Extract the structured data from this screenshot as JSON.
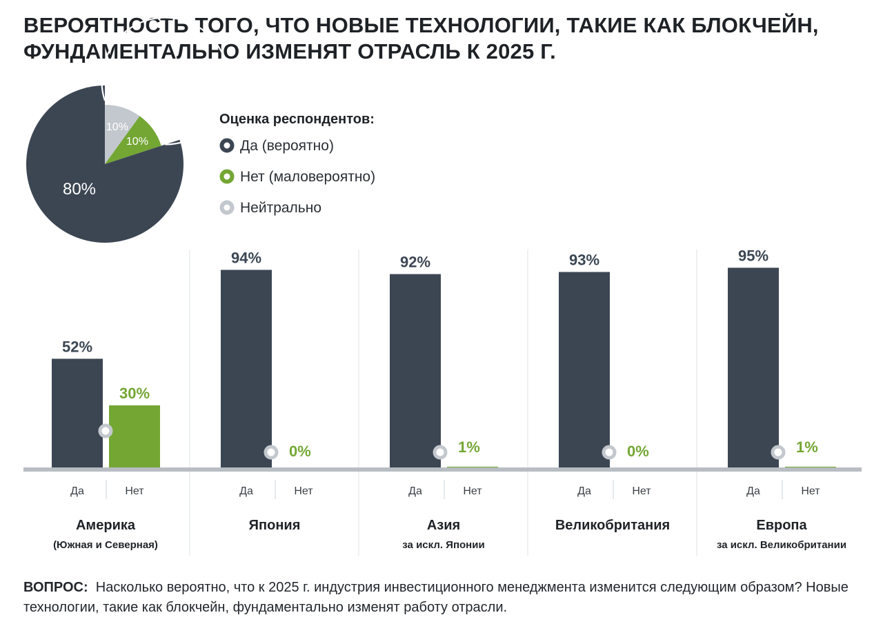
{
  "title": "ВЕРОЯТНОСТЬ ТОГО, ЧТО НОВЫЕ ТЕХНОЛОГИИ, ТАКИЕ КАК БЛОКЧЕЙН, ФУНДАМЕНТАЛЬНО ИЗМЕНЯТ ОТРАСЛЬ К 2025 Г.",
  "legend": {
    "title": "Оценка респондентов:",
    "items": [
      {
        "key": "yes",
        "label": "Да (вероятно)",
        "color": "#3c4653"
      },
      {
        "key": "no",
        "label": "Нет (маловероятно)",
        "color": "#74a634"
      },
      {
        "key": "neutral",
        "label": "Нейтрально",
        "color": "#c3c8ce"
      }
    ]
  },
  "question": {
    "label": "ВОПРОС:",
    "text": "Насколько вероятно, что к 2025 г. индустрия инвестиционного менеджмента изменится следующим образом? Новые технологии, такие как блокчейн, фундаментально изменят работу отрасли."
  },
  "chart_data": [
    {
      "type": "pie",
      "slices": [
        {
          "series": "yes",
          "value": 80,
          "label": "80%"
        },
        {
          "series": "no",
          "value": 10,
          "label": "10%"
        },
        {
          "series": "neutral",
          "value": 10,
          "label": "10%"
        }
      ]
    },
    {
      "type": "bar",
      "bar_labels": [
        "Да",
        "Нет"
      ],
      "ylim": [
        0,
        100
      ],
      "groups": [
        {
          "name": "Америка",
          "subtitle": "(Южная и Северная)",
          "yes": 52,
          "no": 30,
          "yes_label": "52%",
          "no_label": "30%"
        },
        {
          "name": "Япония",
          "subtitle": "",
          "yes": 94,
          "no": 0,
          "yes_label": "94%",
          "no_label": "0%"
        },
        {
          "name": "Азия",
          "subtitle": "за искл. Японии",
          "yes": 92,
          "no": 1,
          "yes_label": "92%",
          "no_label": "1%"
        },
        {
          "name": "Великобритания",
          "subtitle": "",
          "yes": 93,
          "no": 0,
          "yes_label": "93%",
          "no_label": "0%"
        },
        {
          "name": "Европа",
          "subtitle": "за искл. Великобритании",
          "yes": 95,
          "no": 1,
          "yes_label": "95%",
          "no_label": "1%"
        }
      ]
    }
  ]
}
